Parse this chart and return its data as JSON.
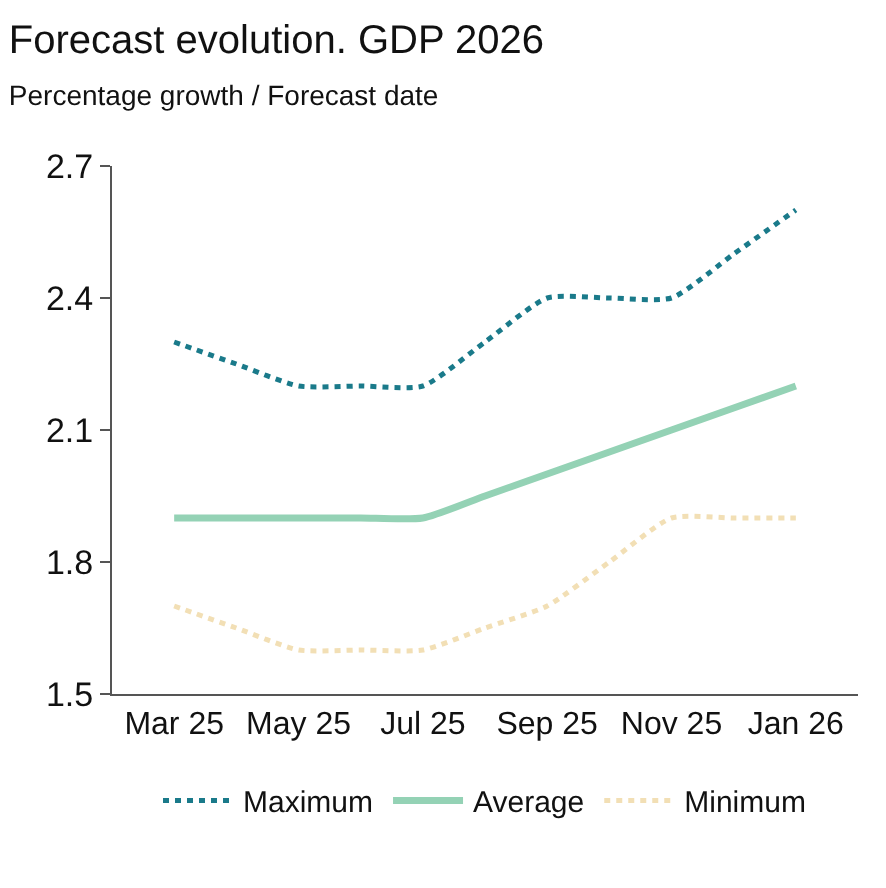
{
  "chart_data": {
    "type": "line",
    "title": "Forecast evolution. GDP 2026",
    "subtitle": "Percentage growth / Forecast date",
    "categories": [
      "Mar 25",
      null,
      "May 25",
      null,
      "Jul 25",
      null,
      "Sep 25",
      null,
      "Nov 25",
      null,
      "Jan 26"
    ],
    "series": [
      {
        "name": "Maximum",
        "color": "#1a7a8a",
        "line_style": "dotted",
        "values": [
          2.3,
          2.25,
          2.2,
          2.2,
          2.2,
          2.3,
          2.4,
          2.4,
          2.4,
          2.5,
          2.6
        ]
      },
      {
        "name": "Average",
        "color": "#94d2b5",
        "line_style": "solid",
        "values": [
          1.9,
          1.9,
          1.9,
          1.9,
          1.9,
          1.95,
          2.0,
          2.05,
          2.1,
          2.15,
          2.2
        ]
      },
      {
        "name": "Minimum",
        "color": "#f2dfb5",
        "line_style": "dotted",
        "values": [
          1.7,
          1.65,
          1.6,
          1.6,
          1.6,
          1.65,
          1.7,
          1.8,
          1.9,
          1.9,
          1.9
        ]
      }
    ],
    "ylim": [
      1.5,
      2.7
    ],
    "yticks": [
      1.5,
      1.8,
      2.1,
      2.4,
      2.7
    ],
    "legend": "bottom",
    "marker": "none"
  }
}
